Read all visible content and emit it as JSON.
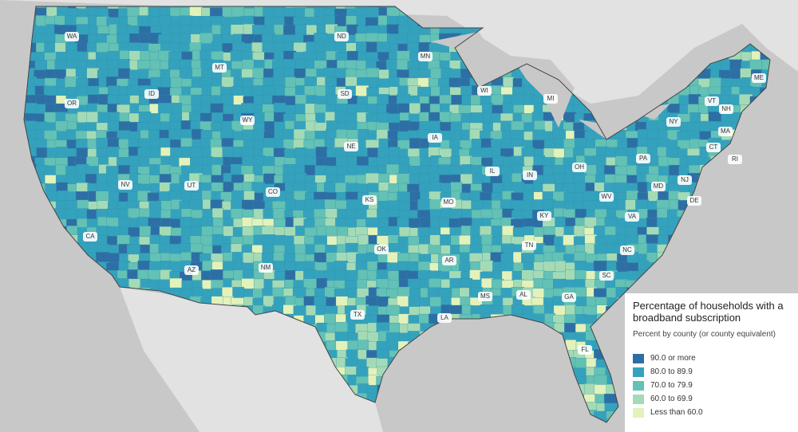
{
  "legend": {
    "title": "Percentage of households with a broadband subscription",
    "subtitle": "Percent by county (or county equivalent)",
    "items": [
      {
        "label": "90.0 or more",
        "color": "#2d6fa5"
      },
      {
        "label": "80.0 to 89.9",
        "color": "#35a2bd"
      },
      {
        "label": "70.0 to 79.9",
        "color": "#63c1b5"
      },
      {
        "label": "60.0 to 69.9",
        "color": "#a4dbb6"
      },
      {
        "label": "Less than 60.0",
        "color": "#e3f2ba"
      }
    ]
  },
  "states": [
    "WA",
    "OR",
    "CA",
    "NV",
    "ID",
    "MT",
    "WY",
    "UT",
    "AZ",
    "CO",
    "NM",
    "ND",
    "SD",
    "NE",
    "KS",
    "OK",
    "TX",
    "MN",
    "IA",
    "MO",
    "AR",
    "LA",
    "WI",
    "IL",
    "MS",
    "MI",
    "IN",
    "KY",
    "TN",
    "AL",
    "OH",
    "WV",
    "VA",
    "NC",
    "SC",
    "GA",
    "FL",
    "PA",
    "NY",
    "VT",
    "NH",
    "ME",
    "MA",
    "CT",
    "RI",
    "NJ",
    "DE",
    "MD"
  ]
}
